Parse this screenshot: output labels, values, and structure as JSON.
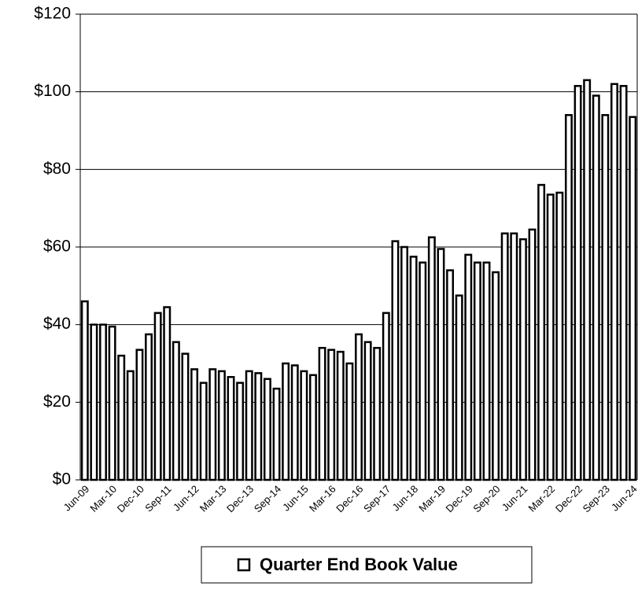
{
  "chart_data": {
    "type": "bar",
    "categories": [
      "Jun-09",
      null,
      null,
      "Mar-10",
      null,
      null,
      "Dec-10",
      null,
      null,
      "Sep-11",
      null,
      null,
      "Jun-12",
      null,
      null,
      "Mar-13",
      null,
      null,
      "Dec-13",
      null,
      null,
      "Sep-14",
      null,
      null,
      "Jun-15",
      null,
      null,
      "Mar-16",
      null,
      null,
      "Dec-16",
      null,
      null,
      "Sep-17",
      null,
      null,
      "Jun-18",
      null,
      null,
      "Mar-19",
      null,
      null,
      "Dec-19",
      null,
      null,
      "Sep-20",
      null,
      null,
      "Jun-21",
      null,
      null,
      "Mar-22",
      null,
      null,
      "Dec-22",
      null,
      null,
      "Sep-23",
      null,
      null,
      "Jun-24"
    ],
    "series": [
      {
        "name": "Quarter End Book Value",
        "color": "#ffffff",
        "values": [
          46,
          40,
          40,
          39.5,
          32,
          28,
          33.5,
          37.5,
          43,
          44.5,
          35.5,
          32.5,
          28.5,
          25,
          28.5,
          28,
          26.5,
          25,
          28,
          27.5,
          26,
          23.5,
          30,
          29.5,
          28,
          27,
          34,
          33.5,
          33,
          30,
          37.5,
          35.5,
          34,
          43,
          61.5,
          60,
          57.5,
          56,
          62.5,
          59.5,
          54,
          47.5,
          58,
          56,
          56,
          53.5,
          63.5,
          63.5,
          62,
          64.5,
          76,
          73.5,
          74,
          94,
          101.5,
          103,
          99,
          94,
          102,
          101.5,
          93.5
        ]
      }
    ],
    "ylim": [
      0,
      120
    ],
    "yticks": [
      {
        "value": 0,
        "label": "$0"
      },
      {
        "value": 20,
        "label": "$20"
      },
      {
        "value": 40,
        "label": "$40"
      },
      {
        "value": 60,
        "label": "$60"
      },
      {
        "value": 80,
        "label": "$80"
      },
      {
        "value": 100,
        "label": "$100"
      },
      {
        "value": 120,
        "label": "$120"
      }
    ],
    "grid": true,
    "legend": "bottom"
  }
}
